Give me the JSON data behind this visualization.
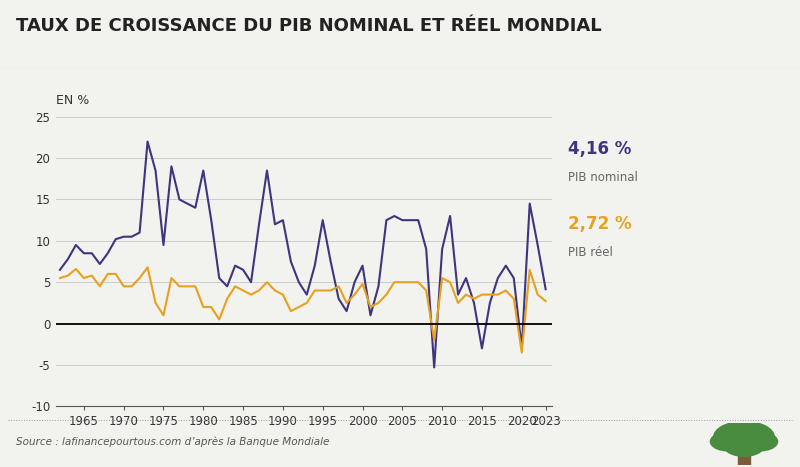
{
  "title": "TAUX DE CROISSANCE DU PIB NOMINAL ET RÉEL MONDIAL",
  "ylabel": "EN %",
  "source": "Source : lafinancepourtous.com d’après la Banque Mondiale",
  "nominal_color": "#3d3580",
  "real_color": "#e8a020",
  "label_color": "#666666",
  "background_color": "#f2f2ee",
  "title_bar_color": "#ffffff",
  "years": [
    1962,
    1963,
    1964,
    1965,
    1966,
    1967,
    1968,
    1969,
    1970,
    1971,
    1972,
    1973,
    1974,
    1975,
    1976,
    1977,
    1978,
    1979,
    1980,
    1981,
    1982,
    1983,
    1984,
    1985,
    1986,
    1987,
    1988,
    1989,
    1990,
    1991,
    1992,
    1993,
    1994,
    1995,
    1996,
    1997,
    1998,
    1999,
    2000,
    2001,
    2002,
    2003,
    2004,
    2005,
    2006,
    2007,
    2008,
    2009,
    2010,
    2011,
    2012,
    2013,
    2014,
    2015,
    2016,
    2017,
    2018,
    2019,
    2020,
    2021,
    2022,
    2023
  ],
  "nominal_gdp": [
    6.5,
    7.8,
    9.5,
    8.5,
    8.5,
    7.2,
    8.5,
    10.2,
    10.5,
    10.5,
    11.0,
    22.0,
    18.5,
    9.5,
    19.0,
    15.0,
    14.5,
    14.0,
    18.5,
    12.5,
    5.5,
    4.5,
    7.0,
    6.5,
    5.0,
    12.0,
    18.5,
    12.0,
    12.5,
    7.5,
    5.0,
    3.5,
    7.0,
    12.5,
    7.5,
    3.0,
    1.5,
    5.0,
    7.0,
    1.0,
    4.5,
    12.5,
    13.0,
    12.5,
    12.5,
    12.5,
    9.0,
    -5.3,
    9.0,
    13.0,
    3.5,
    5.5,
    2.5,
    -3.0,
    2.5,
    5.5,
    7.0,
    5.5,
    -3.0,
    14.5,
    9.5,
    4.16
  ],
  "real_gdp": [
    5.5,
    5.8,
    6.6,
    5.5,
    5.8,
    4.5,
    6.0,
    6.0,
    4.5,
    4.5,
    5.5,
    6.8,
    2.5,
    1.0,
    5.5,
    4.5,
    4.5,
    4.5,
    2.0,
    2.0,
    0.5,
    3.0,
    4.5,
    4.0,
    3.5,
    4.0,
    5.0,
    4.0,
    3.5,
    1.5,
    2.0,
    2.5,
    4.0,
    4.0,
    4.0,
    4.5,
    2.5,
    3.5,
    4.8,
    2.0,
    2.5,
    3.5,
    5.0,
    5.0,
    5.0,
    5.0,
    4.0,
    -2.0,
    5.5,
    5.0,
    2.5,
    3.5,
    3.0,
    3.5,
    3.5,
    3.5,
    4.0,
    3.0,
    -3.5,
    6.5,
    3.5,
    2.72
  ],
  "ylim": [
    -10,
    25
  ],
  "yticks": [
    -10,
    -5,
    0,
    5,
    10,
    15,
    20,
    25
  ],
  "xticks": [
    1965,
    1970,
    1975,
    1980,
    1985,
    1990,
    1995,
    2000,
    2005,
    2010,
    2015,
    2020,
    2023
  ],
  "line_width": 1.5
}
